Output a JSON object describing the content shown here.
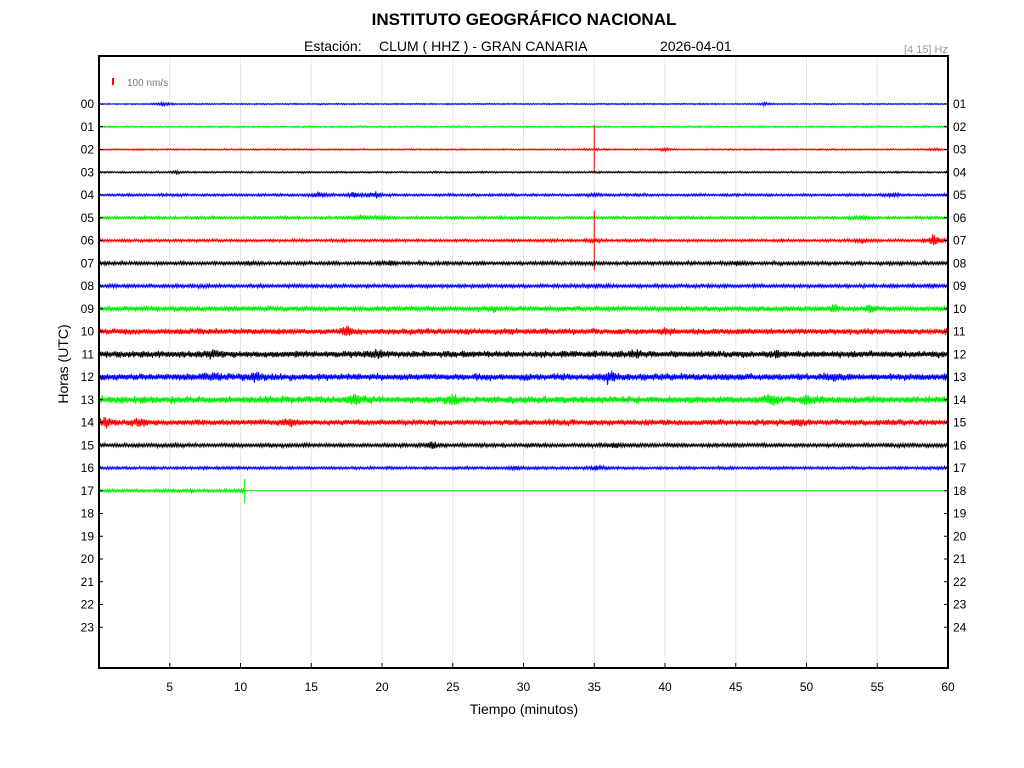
{
  "header": {
    "title": "INSTITUTO GEOGRÁFICO NACIONAL",
    "station_label": "Estación:",
    "station": "CLUM ( HHZ ) - GRAN CANARIA",
    "date": "2026-04-01",
    "filter": "[4 15] Hz",
    "scale": "100 nm/s",
    "scale_color": "#ff0000"
  },
  "chart_data": {
    "type": "line",
    "title": "INSTITUTO GEOGRÁFICO NACIONAL",
    "xlabel": "Tiempo (minutos)",
    "ylabel": "Horas (UTC)",
    "xlim": [
      0,
      60
    ],
    "x_ticks": [
      "5",
      "10",
      "15",
      "20",
      "25",
      "30",
      "35",
      "40",
      "45",
      "50",
      "55",
      "60"
    ],
    "x_tick_values": [
      5,
      10,
      15,
      20,
      25,
      30,
      35,
      40,
      45,
      50,
      55,
      60
    ],
    "y_ticks_left": [
      "00",
      "01",
      "02",
      "03",
      "04",
      "05",
      "06",
      "07",
      "08",
      "09",
      "10",
      "11",
      "12",
      "13",
      "14",
      "15",
      "16",
      "17",
      "18",
      "19",
      "20",
      "21",
      "22",
      "23"
    ],
    "y_ticks_right": [
      "01",
      "02",
      "03",
      "04",
      "05",
      "06",
      "07",
      "08",
      "09",
      "10",
      "11",
      "12",
      "13",
      "14",
      "15",
      "16",
      "17",
      "18",
      "19",
      "20",
      "21",
      "22",
      "23",
      "24"
    ],
    "grid": "vertical",
    "color_cycle": [
      "#0000ff",
      "#00ee00",
      "#ff0000",
      "#000000"
    ],
    "series": [
      {
        "hour": "00",
        "color": "#0000ff",
        "noise": 0.25,
        "events": [
          [
            4.5,
            4,
            0.8
          ],
          [
            47,
            2,
            0.5
          ]
        ]
      },
      {
        "hour": "01",
        "color": "#00ee00",
        "noise": 0.3,
        "events": []
      },
      {
        "hour": "02",
        "color": "#ff0000",
        "noise": 0.3,
        "events": [
          [
            35,
            40,
            0.2
          ],
          [
            40,
            2.5,
            0.6
          ],
          [
            59,
            1.5,
            0.5
          ]
        ]
      },
      {
        "hour": "03",
        "color": "#000000",
        "noise": 0.35,
        "events": [
          [
            5.5,
            3,
            0.4
          ]
        ]
      },
      {
        "hour": "04",
        "color": "#0000ff",
        "noise": 0.5,
        "events": [
          [
            15.5,
            4,
            1.2
          ],
          [
            18,
            5,
            1.3
          ],
          [
            19.5,
            6,
            1.1
          ],
          [
            35,
            8,
            0.5
          ],
          [
            56,
            2.5,
            0.8
          ]
        ]
      },
      {
        "hour": "05",
        "color": "#00ee00",
        "noise": 0.55,
        "events": [
          [
            18.5,
            3,
            0.8
          ],
          [
            20,
            2.5,
            0.6
          ],
          [
            54,
            1.5,
            0.8
          ]
        ]
      },
      {
        "hour": "06",
        "color": "#ff0000",
        "noise": 0.55,
        "events": [
          [
            35,
            50,
            0.8
          ],
          [
            54,
            4,
            0.8
          ],
          [
            59,
            5,
            2.5
          ]
        ]
      },
      {
        "hour": "07",
        "color": "#000000",
        "noise": 0.7,
        "events": [
          [
            10.5,
            3,
            0.5
          ],
          [
            20.5,
            5,
            0.6
          ],
          [
            45,
            2.5,
            0.6
          ]
        ]
      },
      {
        "hour": "08",
        "color": "#0000ff",
        "noise": 0.7,
        "events": [
          [
            35.2,
            3,
            0.6
          ],
          [
            59,
            1.5,
            0.5
          ]
        ]
      },
      {
        "hour": "09",
        "color": "#00ee00",
        "noise": 1.0,
        "events": [
          [
            28,
            3,
            0.6
          ],
          [
            52,
            3.5,
            1.2
          ],
          [
            54.5,
            6,
            1.6
          ]
        ]
      },
      {
        "hour": "10",
        "color": "#ff0000",
        "noise": 1.2,
        "events": [
          [
            17.5,
            7,
            1.6
          ],
          [
            40,
            5,
            0.8
          ]
        ]
      },
      {
        "hour": "11",
        "color": "#000000",
        "noise": 1.35,
        "events": [
          [
            8,
            10,
            0.9
          ],
          [
            19.5,
            6,
            0.8
          ],
          [
            38,
            8,
            0.8
          ],
          [
            48,
            8,
            0.8
          ]
        ]
      },
      {
        "hour": "12",
        "color": "#0000ff",
        "noise": 1.4,
        "events": [
          [
            8,
            6,
            1.3
          ],
          [
            11,
            10,
            1.3
          ],
          [
            36,
            8,
            2.0
          ],
          [
            52,
            4,
            1.1
          ]
        ]
      },
      {
        "hour": "13",
        "color": "#00ee00",
        "noise": 1.45,
        "events": [
          [
            18,
            6,
            1.5
          ],
          [
            25,
            4,
            1.3
          ],
          [
            47.5,
            7,
            1.9
          ],
          [
            50,
            12,
            1.7
          ]
        ]
      },
      {
        "hour": "14",
        "color": "#ff0000",
        "noise": 1.2,
        "events": [
          [
            0.5,
            10,
            1.5
          ],
          [
            3,
            4,
            1.1
          ],
          [
            13.5,
            6,
            1.2
          ],
          [
            49.5,
            6,
            1.1
          ]
        ]
      },
      {
        "hour": "15",
        "color": "#000000",
        "noise": 0.75,
        "events": [
          [
            23.5,
            5,
            1.5
          ],
          [
            36.5,
            4,
            1.0
          ]
        ]
      },
      {
        "hour": "16",
        "color": "#0000ff",
        "noise": 0.55,
        "events": [
          [
            35.2,
            5,
            1.0
          ],
          [
            29.5,
            1.5,
            0.5
          ]
        ]
      },
      {
        "hour": "17",
        "color": "#00ee00",
        "noise": 0.6,
        "end": 10.3,
        "events": [
          [
            10.3,
            20,
            0.6
          ]
        ]
      }
    ]
  }
}
